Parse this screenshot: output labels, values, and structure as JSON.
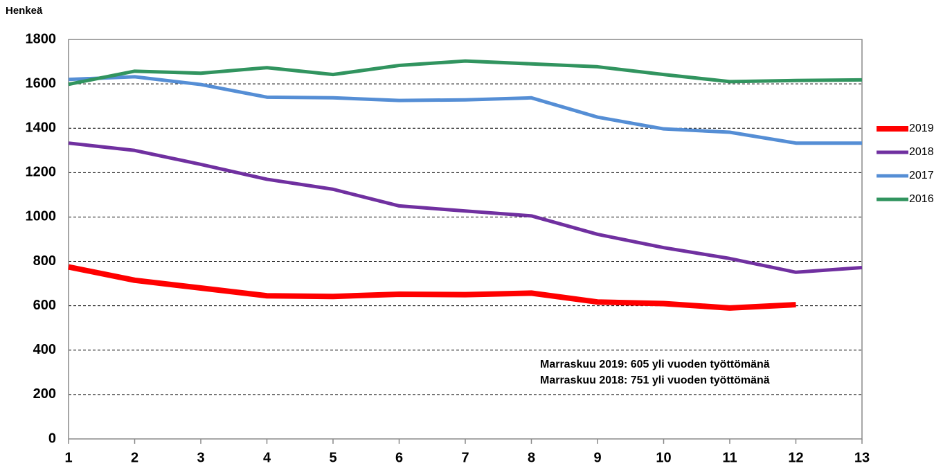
{
  "chart_data": {
    "type": "line",
    "y_label": "Henkeä",
    "x": [
      1,
      2,
      3,
      4,
      5,
      6,
      7,
      8,
      9,
      10,
      11,
      12,
      13
    ],
    "xlim": [
      1,
      13
    ],
    "xticks": [
      1,
      2,
      3,
      4,
      5,
      6,
      7,
      8,
      9,
      10,
      11,
      12,
      13
    ],
    "ylim": [
      0,
      1800
    ],
    "yticks": [
      0,
      200,
      400,
      600,
      800,
      1000,
      1200,
      1400,
      1600,
      1800
    ],
    "grid": true,
    "legend": "right",
    "series": [
      {
        "name": "2019",
        "color": "#ff0000",
        "values": [
          775,
          715,
          680,
          645,
          642,
          652,
          650,
          657,
          617,
          610,
          590,
          605,
          null
        ]
      },
      {
        "name": "2018",
        "color": "#7030a0",
        "values": [
          1333,
          1300,
          1237,
          1170,
          1125,
          1050,
          1027,
          1005,
          922,
          862,
          813,
          751,
          772
        ]
      },
      {
        "name": "2017",
        "color": "#558ed5",
        "values": [
          1620,
          1632,
          1597,
          1540,
          1537,
          1525,
          1528,
          1537,
          1450,
          1397,
          1382,
          1333,
          1333
        ]
      },
      {
        "name": "2016",
        "color": "#31945f",
        "values": [
          1598,
          1657,
          1648,
          1673,
          1642,
          1683,
          1703,
          1690,
          1677,
          1642,
          1610,
          1615,
          1618
        ]
      }
    ],
    "annotations": [
      "Marraskuu 2019: 605 yli vuoden työttömänä",
      "Marraskuu 2018: 751 yli vuoden työttömänä"
    ]
  }
}
